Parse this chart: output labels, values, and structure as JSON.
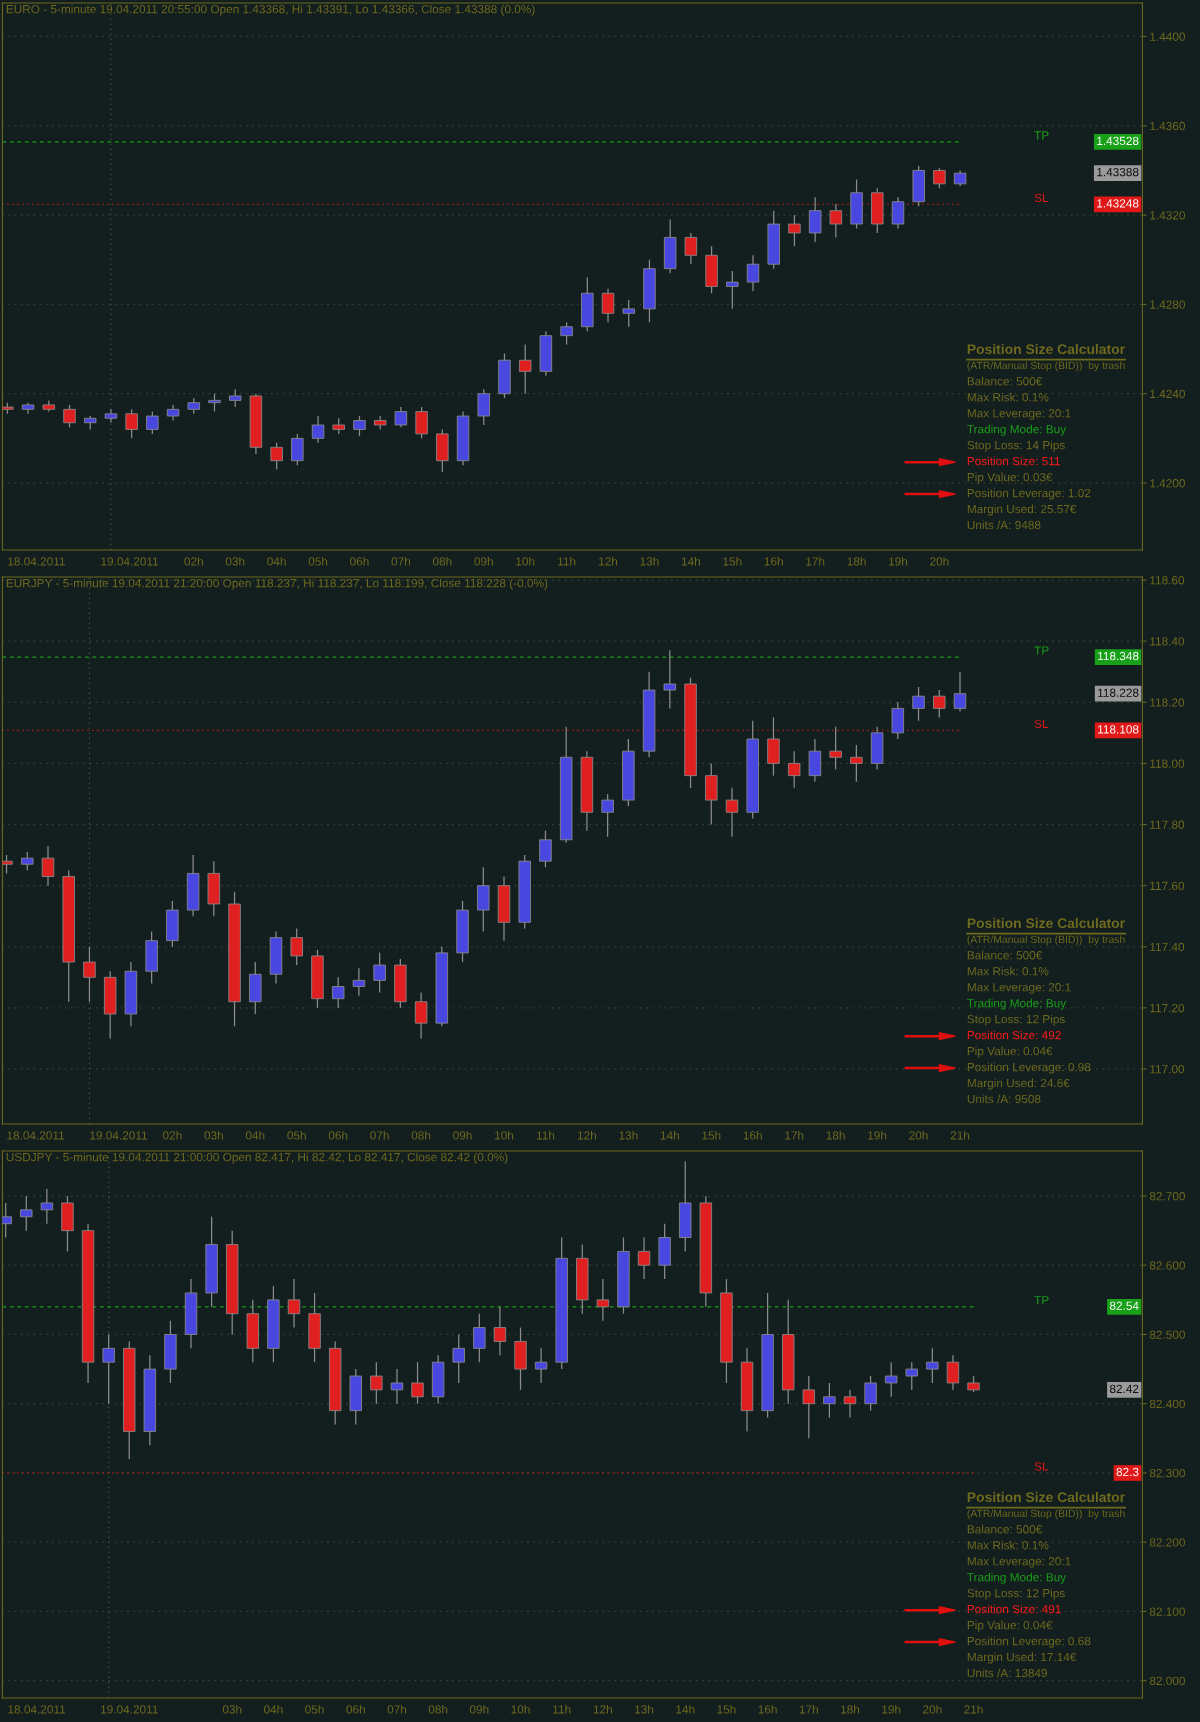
{
  "chart_data": [
    {
      "type": "candlestick",
      "title": "EURO - 5-minute 19.04.2011 20:55:00 Open 1.43368, Hi 1.43391, Lo 1.43366, Close 1.43388 (0.0%)",
      "x": [
        -2.5,
        -2.0,
        -1.5,
        -1.0,
        -0.5,
        0.0,
        0.5,
        1.0,
        1.5,
        2.0,
        2.5,
        3.0,
        3.5,
        4.0,
        4.5,
        5.0,
        5.5,
        6.0,
        6.5,
        7.0,
        7.5,
        8.0,
        8.5,
        9.0,
        9.5,
        10.0,
        10.5,
        11.0,
        11.5,
        12.0,
        12.5,
        13.0,
        13.5,
        14.0,
        14.5,
        15.0,
        15.5,
        16.0,
        16.5,
        17.0,
        17.5,
        18.0,
        18.5,
        19.0,
        19.5,
        20.0,
        20.5
      ],
      "ohlc": [
        [
          1.4234,
          1.4236,
          1.4231,
          1.4233
        ],
        [
          1.4233,
          1.4236,
          1.4231,
          1.4235
        ],
        [
          1.4235,
          1.4237,
          1.4232,
          1.4233
        ],
        [
          1.4233,
          1.4235,
          1.4225,
          1.4227
        ],
        [
          1.4227,
          1.423,
          1.4224,
          1.4229
        ],
        [
          1.4229,
          1.4233,
          1.4227,
          1.4231
        ],
        [
          1.4231,
          1.4233,
          1.422,
          1.4224
        ],
        [
          1.4224,
          1.4232,
          1.4222,
          1.423
        ],
        [
          1.423,
          1.4235,
          1.4228,
          1.4233
        ],
        [
          1.4233,
          1.4238,
          1.4231,
          1.4236
        ],
        [
          1.4236,
          1.424,
          1.4232,
          1.4237
        ],
        [
          1.4237,
          1.4242,
          1.4234,
          1.4239
        ],
        [
          1.4239,
          1.424,
          1.4213,
          1.4216
        ],
        [
          1.4216,
          1.4218,
          1.4206,
          1.421
        ],
        [
          1.421,
          1.4222,
          1.4208,
          1.422
        ],
        [
          1.422,
          1.423,
          1.4218,
          1.4226
        ],
        [
          1.4226,
          1.4229,
          1.4222,
          1.4224
        ],
        [
          1.4224,
          1.423,
          1.4221,
          1.4228
        ],
        [
          1.4228,
          1.423,
          1.4224,
          1.4226
        ],
        [
          1.4226,
          1.4234,
          1.4225,
          1.4232
        ],
        [
          1.4232,
          1.4234,
          1.422,
          1.4222
        ],
        [
          1.4222,
          1.4224,
          1.4205,
          1.421
        ],
        [
          1.421,
          1.4232,
          1.4208,
          1.423
        ],
        [
          1.423,
          1.4242,
          1.4226,
          1.424
        ],
        [
          1.424,
          1.4258,
          1.4238,
          1.4255
        ],
        [
          1.4255,
          1.4262,
          1.424,
          1.425
        ],
        [
          1.425,
          1.4268,
          1.4248,
          1.4266
        ],
        [
          1.4266,
          1.4272,
          1.4262,
          1.427
        ],
        [
          1.427,
          1.4292,
          1.4268,
          1.4285
        ],
        [
          1.4285,
          1.4287,
          1.4272,
          1.4276
        ],
        [
          1.4276,
          1.4282,
          1.427,
          1.4278
        ],
        [
          1.4278,
          1.43,
          1.4272,
          1.4296
        ],
        [
          1.4296,
          1.4318,
          1.4294,
          1.431
        ],
        [
          1.431,
          1.4312,
          1.4298,
          1.4302
        ],
        [
          1.4302,
          1.4306,
          1.4285,
          1.4288
        ],
        [
          1.4288,
          1.4295,
          1.4278,
          1.429
        ],
        [
          1.429,
          1.4302,
          1.4286,
          1.4298
        ],
        [
          1.4298,
          1.4322,
          1.4296,
          1.4316
        ],
        [
          1.4316,
          1.432,
          1.4306,
          1.4312
        ],
        [
          1.4312,
          1.4328,
          1.4308,
          1.4322
        ],
        [
          1.4322,
          1.4325,
          1.431,
          1.4316
        ],
        [
          1.4316,
          1.4336,
          1.4314,
          1.433
        ],
        [
          1.433,
          1.4332,
          1.4312,
          1.4316
        ],
        [
          1.4316,
          1.4328,
          1.4314,
          1.4326
        ],
        [
          1.4326,
          1.4342,
          1.4324,
          1.434
        ],
        [
          1.434,
          1.4341,
          1.4332,
          1.4334
        ],
        [
          1.4334,
          1.434,
          1.4333,
          1.43388
        ]
      ],
      "colors": [
        "#e02020",
        "#4848e0",
        "#e02020",
        "#e02020",
        "#4848e0",
        "#4848e0",
        "#e02020",
        "#4848e0",
        "#4848e0",
        "#4848e0",
        "#4848e0",
        "#4848e0",
        "#e02020",
        "#e02020",
        "#4848e0",
        "#4848e0",
        "#e02020",
        "#4848e0",
        "#e02020",
        "#4848e0",
        "#e02020",
        "#e02020",
        "#4848e0",
        "#4848e0",
        "#4848e0",
        "#e02020",
        "#4848e0",
        "#4848e0",
        "#4848e0",
        "#e02020",
        "#4848e0",
        "#4848e0",
        "#4848e0",
        "#e02020",
        "#e02020",
        "#4848e0",
        "#4848e0",
        "#4848e0",
        "#e02020",
        "#4848e0",
        "#e02020",
        "#4848e0",
        "#e02020",
        "#4848e0",
        "#4848e0",
        "#e02020",
        "#4848e0"
      ],
      "xlim": [
        -2.62,
        24.9
      ],
      "xticks": [
        {
          "value": -1.8,
          "label": "18.04.2011"
        },
        {
          "value": 0.45,
          "label": "19.04.2011"
        },
        {
          "value": 2,
          "label": "02h"
        },
        {
          "value": 3,
          "label": "03h"
        },
        {
          "value": 4,
          "label": "04h"
        },
        {
          "value": 5,
          "label": "05h"
        },
        {
          "value": 6,
          "label": "06h"
        },
        {
          "value": 7,
          "label": "07h"
        },
        {
          "value": 8,
          "label": "08h"
        },
        {
          "value": 9,
          "label": "09h"
        },
        {
          "value": 10,
          "label": "10h"
        },
        {
          "value": 11,
          "label": "11h"
        },
        {
          "value": 12,
          "label": "12h"
        },
        {
          "value": 13,
          "label": "13h"
        },
        {
          "value": 14,
          "label": "14h"
        },
        {
          "value": 15,
          "label": "15h"
        },
        {
          "value": 16,
          "label": "16h"
        },
        {
          "value": 17,
          "label": "17h"
        },
        {
          "value": 18,
          "label": "18h"
        },
        {
          "value": 19,
          "label": "19h"
        },
        {
          "value": 20,
          "label": "20h"
        }
      ],
      "ylim": [
        1.417,
        1.4415
      ],
      "yticks": [
        {
          "value": 1.42,
          "label": "1.4200"
        },
        {
          "value": 1.424,
          "label": "1.4240"
        },
        {
          "value": 1.428,
          "label": "1.4280"
        },
        {
          "value": 1.432,
          "label": "1.4320"
        },
        {
          "value": 1.436,
          "label": "1.4360"
        },
        {
          "value": 1.44,
          "label": "1.4400"
        }
      ],
      "grid": "y",
      "ref_lines": [
        {
          "axis": "x",
          "value": 0,
          "color": "#3a5a3a",
          "line_style": "dotted"
        },
        {
          "axis": "y",
          "value": 1.43528,
          "label": "TP",
          "color": "#18a018",
          "line_style": "dashed"
        },
        {
          "axis": "y",
          "value": 1.43248,
          "label": "SL",
          "color": "#e01818",
          "line_style": "dotted"
        }
      ],
      "annotations": [
        "Position Size Calculator",
        "(ATR/Manual Stop (BID))  by trash",
        "Balance: 500€",
        "Max Risk: 0.1%",
        "Max Leverage: 20:1",
        "Trading Mode: Buy",
        "Stop Loss: 14 Pips",
        "Position Size: 511",
        "Pip Value: 0.03€",
        "Position Leverage: 1.02",
        "Margin Used: 25.57€",
        "Units /A: 9488",
        "1.43528",
        "1.43248",
        "1.43388"
      ]
    },
    {
      "type": "candlestick",
      "title": "EURJPY - 5-minute 19.04.2011 21:20:00 Open 118.237, Hi 118.237, Lo 118.199, Close 118.228 (-0.0%)",
      "x": [
        -2.0,
        -1.5,
        -1.0,
        -0.5,
        0.0,
        0.5,
        1.0,
        1.5,
        2.0,
        2.5,
        3.0,
        3.5,
        4.0,
        4.5,
        5.0,
        5.5,
        6.0,
        6.5,
        7.0,
        7.5,
        8.0,
        8.5,
        9.0,
        9.5,
        10.0,
        10.5,
        11.0,
        11.5,
        12.0,
        12.5,
        13.0,
        13.5,
        14.0,
        14.5,
        15.0,
        15.5,
        16.0,
        16.5,
        17.0,
        17.5,
        18.0,
        18.5,
        19.0,
        19.5,
        20.0,
        20.5,
        21.0
      ],
      "ohlc": [
        [
          117.68,
          117.7,
          117.64,
          117.67
        ],
        [
          117.67,
          117.71,
          117.65,
          117.69
        ],
        [
          117.69,
          117.73,
          117.6,
          117.63
        ],
        [
          117.63,
          117.65,
          117.22,
          117.35
        ],
        [
          117.35,
          117.4,
          117.22,
          117.3
        ],
        [
          117.3,
          117.32,
          117.1,
          117.18
        ],
        [
          117.18,
          117.35,
          117.14,
          117.32
        ],
        [
          117.32,
          117.45,
          117.28,
          117.42
        ],
        [
          117.42,
          117.55,
          117.4,
          117.52
        ],
        [
          117.52,
          117.7,
          117.5,
          117.64
        ],
        [
          117.64,
          117.68,
          117.5,
          117.54
        ],
        [
          117.54,
          117.58,
          117.14,
          117.22
        ],
        [
          117.22,
          117.35,
          117.18,
          117.31
        ],
        [
          117.31,
          117.45,
          117.28,
          117.43
        ],
        [
          117.43,
          117.46,
          117.34,
          117.37
        ],
        [
          117.37,
          117.39,
          117.2,
          117.23
        ],
        [
          117.23,
          117.3,
          117.2,
          117.27
        ],
        [
          117.27,
          117.33,
          117.24,
          117.29
        ],
        [
          117.29,
          117.38,
          117.25,
          117.34
        ],
        [
          117.34,
          117.36,
          117.2,
          117.22
        ],
        [
          117.22,
          117.25,
          117.1,
          117.15
        ],
        [
          117.15,
          117.4,
          117.14,
          117.38
        ],
        [
          117.38,
          117.55,
          117.35,
          117.52
        ],
        [
          117.52,
          117.66,
          117.45,
          117.6
        ],
        [
          117.6,
          117.63,
          117.42,
          117.48
        ],
        [
          117.48,
          117.7,
          117.46,
          117.68
        ],
        [
          117.68,
          117.78,
          117.66,
          117.75
        ],
        [
          117.75,
          118.12,
          117.74,
          118.02
        ],
        [
          118.02,
          118.04,
          117.78,
          117.84
        ],
        [
          117.84,
          117.9,
          117.76,
          117.88
        ],
        [
          117.88,
          118.08,
          117.86,
          118.04
        ],
        [
          118.04,
          118.3,
          118.02,
          118.24
        ],
        [
          118.24,
          118.37,
          118.18,
          118.26
        ],
        [
          118.26,
          118.28,
          117.92,
          117.96
        ],
        [
          117.96,
          118.0,
          117.8,
          117.88
        ],
        [
          117.88,
          117.92,
          117.76,
          117.84
        ],
        [
          117.84,
          118.14,
          117.82,
          118.08
        ],
        [
          118.08,
          118.15,
          117.96,
          118.0
        ],
        [
          118.0,
          118.04,
          117.92,
          117.96
        ],
        [
          117.96,
          118.08,
          117.94,
          118.04
        ],
        [
          118.04,
          118.12,
          117.98,
          118.02
        ],
        [
          118.02,
          118.06,
          117.94,
          118.0
        ],
        [
          118.0,
          118.12,
          117.98,
          118.1
        ],
        [
          118.1,
          118.2,
          118.08,
          118.18
        ],
        [
          118.18,
          118.25,
          118.14,
          118.22
        ],
        [
          118.22,
          118.24,
          118.15,
          118.18
        ],
        [
          118.18,
          118.3,
          118.17,
          118.228
        ]
      ],
      "colors": [
        "#e02020",
        "#4848e0",
        "#e02020",
        "#e02020",
        "#e02020",
        "#e02020",
        "#4848e0",
        "#4848e0",
        "#4848e0",
        "#4848e0",
        "#e02020",
        "#e02020",
        "#4848e0",
        "#4848e0",
        "#e02020",
        "#e02020",
        "#4848e0",
        "#4848e0",
        "#4848e0",
        "#e02020",
        "#e02020",
        "#4848e0",
        "#4848e0",
        "#4848e0",
        "#e02020",
        "#4848e0",
        "#4848e0",
        "#4848e0",
        "#e02020",
        "#4848e0",
        "#4848e0",
        "#4848e0",
        "#4848e0",
        "#e02020",
        "#e02020",
        "#e02020",
        "#4848e0",
        "#e02020",
        "#e02020",
        "#4848e0",
        "#e02020",
        "#e02020",
        "#4848e0",
        "#4848e0",
        "#4848e0",
        "#e02020",
        "#4848e0"
      ],
      "xlim": [
        -2.1,
        25.4
      ],
      "xticks": [
        {
          "value": -1.3,
          "label": "18.04.2011"
        },
        {
          "value": 0.7,
          "label": "19.04.2011"
        },
        {
          "value": 2,
          "label": "02h"
        },
        {
          "value": 3,
          "label": "03h"
        },
        {
          "value": 4,
          "label": "04h"
        },
        {
          "value": 5,
          "label": "05h"
        },
        {
          "value": 6,
          "label": "06h"
        },
        {
          "value": 7,
          "label": "07h"
        },
        {
          "value": 8,
          "label": "08h"
        },
        {
          "value": 9,
          "label": "09h"
        },
        {
          "value": 10,
          "label": "10h"
        },
        {
          "value": 11,
          "label": "11h"
        },
        {
          "value": 12,
          "label": "12h"
        },
        {
          "value": 13,
          "label": "13h"
        },
        {
          "value": 14,
          "label": "14h"
        },
        {
          "value": 15,
          "label": "15h"
        },
        {
          "value": 16,
          "label": "16h"
        },
        {
          "value": 17,
          "label": "17h"
        },
        {
          "value": 18,
          "label": "18h"
        },
        {
          "value": 19,
          "label": "19h"
        },
        {
          "value": 20,
          "label": "20h"
        },
        {
          "value": 21,
          "label": "21h"
        }
      ],
      "ylim": [
        116.82,
        118.61
      ],
      "yticks": [
        {
          "value": 117.0,
          "label": "117.00"
        },
        {
          "value": 117.2,
          "label": "117.20"
        },
        {
          "value": 117.4,
          "label": "117.40"
        },
        {
          "value": 117.6,
          "label": "117.60"
        },
        {
          "value": 117.8,
          "label": "117.80"
        },
        {
          "value": 118.0,
          "label": "118.00"
        },
        {
          "value": 118.2,
          "label": "118.20"
        },
        {
          "value": 118.4,
          "label": "118.40"
        },
        {
          "value": 118.6,
          "label": "118.60"
        }
      ],
      "grid": "y",
      "ref_lines": [
        {
          "axis": "x",
          "value": 0,
          "color": "#3a5a3a",
          "line_style": "dotted"
        },
        {
          "axis": "y",
          "value": 118.348,
          "label": "TP",
          "color": "#18a018",
          "line_style": "dashed"
        },
        {
          "axis": "y",
          "value": 118.108,
          "label": "SL",
          "color": "#e01818",
          "line_style": "dotted"
        }
      ],
      "annotations": [
        "Position Size Calculator",
        "(ATR/Manual Stop (BID))  by trash",
        "Balance: 500€",
        "Max Risk: 0.1%",
        "Max Leverage: 20:1",
        "Trading Mode: Buy",
        "Stop Loss: 12 Pips",
        "Position Size: 492",
        "Pip Value: 0.04€",
        "Position Leverage: 0.98",
        "Margin Used: 24.6€",
        "Units /A: 9508",
        "118.348",
        "118.108",
        "118.228"
      ]
    },
    {
      "type": "candlestick",
      "title": "USDJPY - 5-minute 19.04.2011 21:00:00 Open 82.417, Hi 82.42, Lo 82.417, Close 82.42 (0.0%)",
      "x": [
        -2.5,
        -2.0,
        -1.5,
        -1.0,
        -0.5,
        0.0,
        0.5,
        1.0,
        1.5,
        2.0,
        2.5,
        3.0,
        3.5,
        4.0,
        4.5,
        5.0,
        5.5,
        6.0,
        6.5,
        7.0,
        7.5,
        8.0,
        8.5,
        9.0,
        9.5,
        10.0,
        10.5,
        11.0,
        11.5,
        12.0,
        12.5,
        13.0,
        13.5,
        14.0,
        14.5,
        15.0,
        15.5,
        16.0,
        16.5,
        17.0,
        17.5,
        18.0,
        18.5,
        19.0,
        19.5,
        20.0,
        20.5,
        21.0
      ],
      "ohlc": [
        [
          82.66,
          82.69,
          82.64,
          82.67
        ],
        [
          82.67,
          82.7,
          82.65,
          82.68
        ],
        [
          82.68,
          82.71,
          82.66,
          82.69
        ],
        [
          82.69,
          82.7,
          82.62,
          82.65
        ],
        [
          82.65,
          82.66,
          82.43,
          82.46
        ],
        [
          82.46,
          82.5,
          82.4,
          82.48
        ],
        [
          82.48,
          82.49,
          82.32,
          82.36
        ],
        [
          82.36,
          82.47,
          82.34,
          82.45
        ],
        [
          82.45,
          82.52,
          82.43,
          82.5
        ],
        [
          82.5,
          82.58,
          82.48,
          82.56
        ],
        [
          82.56,
          82.67,
          82.54,
          82.63
        ],
        [
          82.63,
          82.65,
          82.5,
          82.53
        ],
        [
          82.53,
          82.55,
          82.46,
          82.48
        ],
        [
          82.48,
          82.57,
          82.46,
          82.55
        ],
        [
          82.55,
          82.58,
          82.51,
          82.53
        ],
        [
          82.53,
          82.56,
          82.46,
          82.48
        ],
        [
          82.48,
          82.49,
          82.37,
          82.39
        ],
        [
          82.39,
          82.45,
          82.37,
          82.44
        ],
        [
          82.44,
          82.46,
          82.4,
          82.42
        ],
        [
          82.42,
          82.45,
          82.4,
          82.43
        ],
        [
          82.43,
          82.46,
          82.4,
          82.41
        ],
        [
          82.41,
          82.47,
          82.4,
          82.46
        ],
        [
          82.46,
          82.5,
          82.43,
          82.48
        ],
        [
          82.48,
          82.53,
          82.46,
          82.51
        ],
        [
          82.51,
          82.54,
          82.47,
          82.49
        ],
        [
          82.49,
          82.51,
          82.42,
          82.45
        ],
        [
          82.45,
          82.48,
          82.43,
          82.46
        ],
        [
          82.46,
          82.64,
          82.45,
          82.61
        ],
        [
          82.61,
          82.63,
          82.53,
          82.55
        ],
        [
          82.55,
          82.58,
          82.52,
          82.54
        ],
        [
          82.54,
          82.64,
          82.53,
          82.62
        ],
        [
          82.62,
          82.64,
          82.58,
          82.6
        ],
        [
          82.6,
          82.66,
          82.58,
          82.64
        ],
        [
          82.64,
          82.75,
          82.62,
          82.69
        ],
        [
          82.69,
          82.7,
          82.54,
          82.56
        ],
        [
          82.56,
          82.58,
          82.43,
          82.46
        ],
        [
          82.46,
          82.48,
          82.36,
          82.39
        ],
        [
          82.39,
          82.56,
          82.38,
          82.5
        ],
        [
          82.5,
          82.55,
          82.4,
          82.42
        ],
        [
          82.42,
          82.44,
          82.35,
          82.4
        ],
        [
          82.4,
          82.43,
          82.38,
          82.41
        ],
        [
          82.41,
          82.42,
          82.38,
          82.4
        ],
        [
          82.4,
          82.44,
          82.39,
          82.43
        ],
        [
          82.43,
          82.46,
          82.41,
          82.44
        ],
        [
          82.44,
          82.46,
          82.42,
          82.45
        ],
        [
          82.45,
          82.48,
          82.43,
          82.46
        ],
        [
          82.46,
          82.47,
          82.42,
          82.43
        ],
        [
          82.43,
          82.44,
          82.417,
          82.42
        ]
      ],
      "colors": [
        "#4848e0",
        "#4848e0",
        "#4848e0",
        "#e02020",
        "#e02020",
        "#4848e0",
        "#e02020",
        "#4848e0",
        "#4848e0",
        "#4848e0",
        "#4848e0",
        "#e02020",
        "#e02020",
        "#4848e0",
        "#e02020",
        "#e02020",
        "#e02020",
        "#4848e0",
        "#e02020",
        "#4848e0",
        "#e02020",
        "#4848e0",
        "#4848e0",
        "#4848e0",
        "#e02020",
        "#e02020",
        "#4848e0",
        "#4848e0",
        "#e02020",
        "#e02020",
        "#4848e0",
        "#e02020",
        "#4848e0",
        "#4848e0",
        "#e02020",
        "#e02020",
        "#e02020",
        "#4848e0",
        "#e02020",
        "#e02020",
        "#4848e0",
        "#e02020",
        "#4848e0",
        "#4848e0",
        "#4848e0",
        "#4848e0",
        "#e02020",
        "#e02020"
      ],
      "xlim": [
        -2.58,
        25.1
      ],
      "xticks": [
        {
          "value": -1.75,
          "label": "18.04.2011"
        },
        {
          "value": 0.5,
          "label": "19.04.2011"
        },
        {
          "value": 3,
          "label": "03h"
        },
        {
          "value": 4,
          "label": "04h"
        },
        {
          "value": 5,
          "label": "05h"
        },
        {
          "value": 6,
          "label": "06h"
        },
        {
          "value": 7,
          "label": "07h"
        },
        {
          "value": 8,
          "label": "08h"
        },
        {
          "value": 9,
          "label": "09h"
        },
        {
          "value": 10,
          "label": "10h"
        },
        {
          "value": 11,
          "label": "11h"
        },
        {
          "value": 12,
          "label": "12h"
        },
        {
          "value": 13,
          "label": "13h"
        },
        {
          "value": 14,
          "label": "14h"
        },
        {
          "value": 15,
          "label": "15h"
        },
        {
          "value": 16,
          "label": "16h"
        },
        {
          "value": 17,
          "label": "17h"
        },
        {
          "value": 18,
          "label": "18h"
        },
        {
          "value": 19,
          "label": "19h"
        },
        {
          "value": 20,
          "label": "20h"
        },
        {
          "value": 21,
          "label": "21h"
        }
      ],
      "ylim": [
        81.975,
        82.765
      ],
      "yticks": [
        {
          "value": 82.0,
          "label": "82.000"
        },
        {
          "value": 82.1,
          "label": "82.100"
        },
        {
          "value": 82.2,
          "label": "82.200"
        },
        {
          "value": 82.3,
          "label": "82.300"
        },
        {
          "value": 82.4,
          "label": "82.400"
        },
        {
          "value": 82.5,
          "label": "82.500"
        },
        {
          "value": 82.6,
          "label": "82.600"
        },
        {
          "value": 82.7,
          "label": "82.700"
        }
      ],
      "grid": "y",
      "ref_lines": [
        {
          "axis": "x",
          "value": 0,
          "color": "#3a5a3a",
          "line_style": "dotted"
        },
        {
          "axis": "y",
          "value": 82.54,
          "label": "TP",
          "color": "#18a018",
          "line_style": "dashed"
        },
        {
          "axis": "y",
          "value": 82.3,
          "label": "SL",
          "color": "#e01818",
          "line_style": "dotted"
        }
      ],
      "annotations": [
        "Position Size Calculator",
        "(ATR/Manual Stop (BID))  by trash",
        "Balance: 500€",
        "Max Risk: 0.1%",
        "Max Leverage: 20:1",
        "Trading Mode: Buy",
        "Stop Loss: 12 Pips",
        "Position Size: 491",
        "Pip Value: 0.04€",
        "Position Leverage: 0.68",
        "Margin Used: 17.14€",
        "Units /A: 13849",
        "82.54",
        "82.3",
        "82.42"
      ]
    }
  ]
}
